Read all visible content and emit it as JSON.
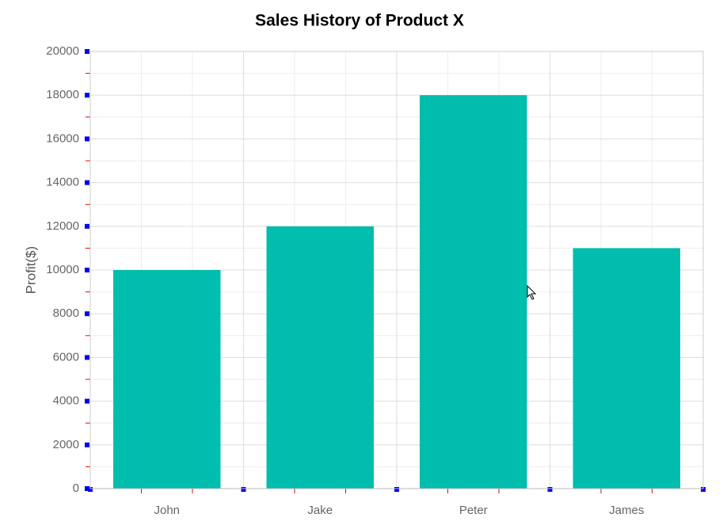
{
  "chart_data": {
    "type": "bar",
    "title": "Sales History of Product X",
    "y_label": "Profit($)",
    "categories": [
      "John",
      "Jake",
      "Peter",
      "James"
    ],
    "values": [
      10000,
      12000,
      18000,
      11000
    ],
    "color": "#00bdae",
    "ylim": [
      0,
      20000
    ],
    "yticks": [
      0,
      2000,
      4000,
      6000,
      8000,
      10000,
      12000,
      14000,
      16000,
      18000,
      20000
    ],
    "grid": true
  }
}
